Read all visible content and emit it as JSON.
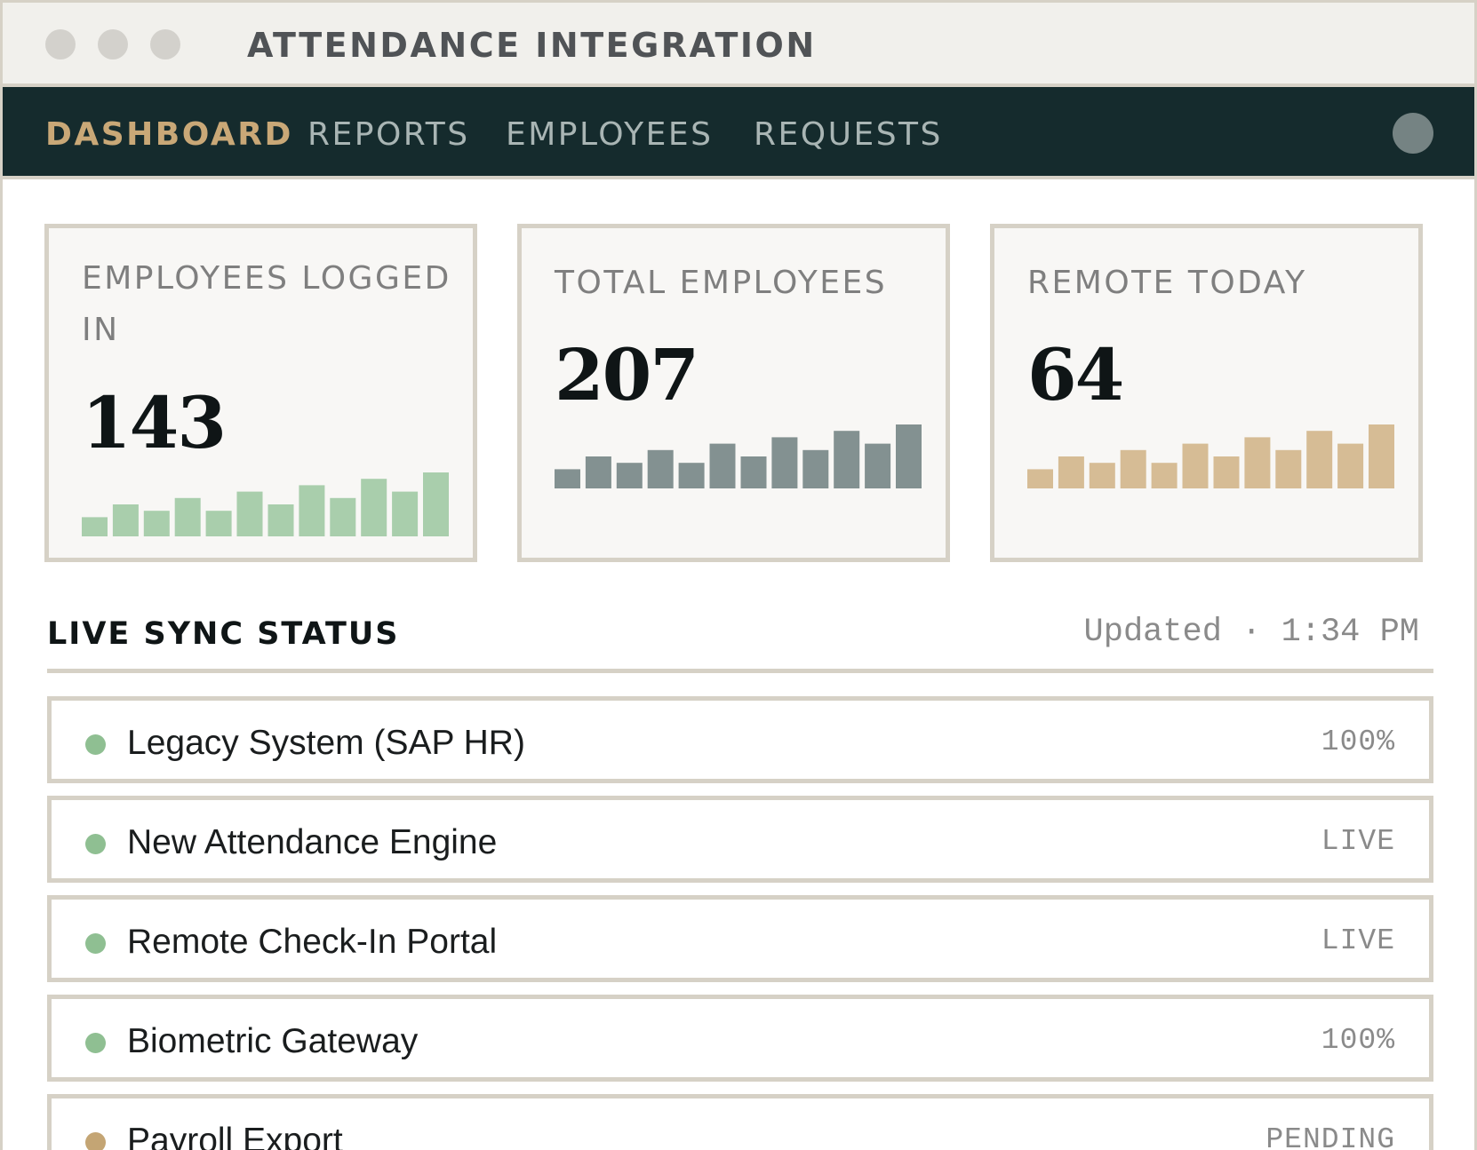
{
  "window": {
    "title": "ATTENDANCE INTEGRATION"
  },
  "nav": {
    "items": [
      {
        "label": "DASHBOARD",
        "active": true
      },
      {
        "label": "REPORTS",
        "active": false
      },
      {
        "label": "EMPLOYEES",
        "active": false
      },
      {
        "label": "REQUESTS",
        "active": false
      }
    ],
    "avatar_icon": "user-avatar-icon"
  },
  "cards": [
    {
      "label": "EMPLOYEES LOGGED IN",
      "value": "143",
      "color": "#a9ceac",
      "spark": [
        3,
        5,
        4,
        6,
        4,
        7,
        5,
        8,
        6,
        9,
        7,
        10
      ]
    },
    {
      "label": "TOTAL EMPLOYEES",
      "value": "207",
      "color": "#839191",
      "spark": [
        3,
        5,
        4,
        6,
        4,
        7,
        5,
        8,
        6,
        9,
        7,
        10
      ]
    },
    {
      "label": "REMOTE TODAY",
      "value": "64",
      "color": "#d6bc95",
      "spark": [
        3,
        5,
        4,
        6,
        4,
        7,
        5,
        8,
        6,
        9,
        7,
        10
      ]
    }
  ],
  "live_sync": {
    "title": "LIVE SYNC STATUS",
    "updated": "Updated · 1:34 PM",
    "rows": [
      {
        "name": "Legacy System (SAP HR)",
        "status": "100%",
        "dot_color": "#8fbf92"
      },
      {
        "name": "New Attendance Engine",
        "status": "LIVE",
        "dot_color": "#8fbf92"
      },
      {
        "name": "Remote Check-In Portal",
        "status": "LIVE",
        "dot_color": "#8fbf92"
      },
      {
        "name": "Biometric Gateway",
        "status": "100%",
        "dot_color": "#8fbf92"
      },
      {
        "name": "Payroll Export",
        "status": "PENDING",
        "dot_color": "#c4a574"
      }
    ]
  }
}
